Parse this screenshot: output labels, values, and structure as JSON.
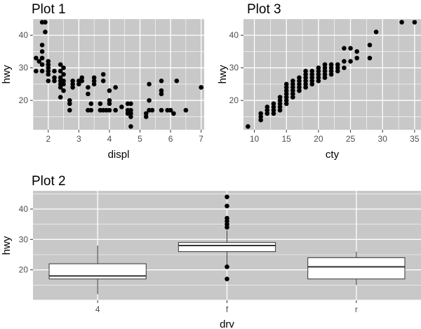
{
  "panel_bg": "#c8c8c8",
  "grid_color": "#ffffff",
  "point_color": "#000000",
  "chart_data": [
    {
      "id": "plot1",
      "type": "scatter",
      "title": "Plot 1",
      "xlabel": "displ",
      "ylabel": "hwy",
      "xlim": [
        1.5,
        7.1
      ],
      "ylim": [
        11,
        45
      ],
      "xticks": [
        2,
        3,
        4,
        5,
        6,
        7
      ],
      "yticks": [
        20,
        30,
        40
      ],
      "points": [
        [
          1.6,
          29
        ],
        [
          1.6,
          33
        ],
        [
          1.7,
          32
        ],
        [
          1.8,
          29
        ],
        [
          1.8,
          31
        ],
        [
          1.8,
          33
        ],
        [
          1.8,
          35
        ],
        [
          1.8,
          37
        ],
        [
          1.8,
          44
        ],
        [
          1.9,
          41
        ],
        [
          1.9,
          44
        ],
        [
          2.0,
          26
        ],
        [
          2.0,
          28
        ],
        [
          2.0,
          29
        ],
        [
          2.0,
          30
        ],
        [
          2.0,
          31
        ],
        [
          2.0,
          32
        ],
        [
          2.2,
          26
        ],
        [
          2.2,
          27
        ],
        [
          2.2,
          29
        ],
        [
          2.4,
          21
        ],
        [
          2.4,
          24
        ],
        [
          2.4,
          25
        ],
        [
          2.4,
          26
        ],
        [
          2.4,
          27
        ],
        [
          2.4,
          29
        ],
        [
          2.4,
          31
        ],
        [
          2.5,
          23
        ],
        [
          2.5,
          25
        ],
        [
          2.5,
          26
        ],
        [
          2.5,
          28
        ],
        [
          2.5,
          30
        ],
        [
          2.7,
          17
        ],
        [
          2.7,
          19
        ],
        [
          2.7,
          20
        ],
        [
          2.8,
          24
        ],
        [
          2.8,
          25
        ],
        [
          2.8,
          26
        ],
        [
          3.0,
          25
        ],
        [
          3.0,
          26
        ],
        [
          3.1,
          26
        ],
        [
          3.1,
          27
        ],
        [
          3.3,
          17
        ],
        [
          3.3,
          22
        ],
        [
          3.3,
          24
        ],
        [
          3.4,
          17
        ],
        [
          3.4,
          19
        ],
        [
          3.5,
          25
        ],
        [
          3.5,
          26
        ],
        [
          3.5,
          27
        ],
        [
          3.7,
          17
        ],
        [
          3.7,
          19
        ],
        [
          3.8,
          17
        ],
        [
          3.8,
          26
        ],
        [
          3.8,
          28
        ],
        [
          3.9,
          17
        ],
        [
          4.0,
          17
        ],
        [
          4.0,
          19
        ],
        [
          4.0,
          20
        ],
        [
          4.0,
          23
        ],
        [
          4.2,
          17
        ],
        [
          4.2,
          24
        ],
        [
          4.4,
          18
        ],
        [
          4.6,
          16
        ],
        [
          4.6,
          17
        ],
        [
          4.6,
          19
        ],
        [
          4.7,
          12
        ],
        [
          4.7,
          15
        ],
        [
          4.7,
          16
        ],
        [
          4.7,
          17
        ],
        [
          4.7,
          19
        ],
        [
          5.2,
          15
        ],
        [
          5.2,
          16
        ],
        [
          5.3,
          17
        ],
        [
          5.3,
          20
        ],
        [
          5.3,
          25
        ],
        [
          5.4,
          17
        ],
        [
          5.7,
          17
        ],
        [
          5.7,
          22
        ],
        [
          5.7,
          23
        ],
        [
          5.7,
          26
        ],
        [
          5.9,
          17
        ],
        [
          6.0,
          17
        ],
        [
          6.1,
          16
        ],
        [
          6.2,
          26
        ],
        [
          6.5,
          17
        ],
        [
          7.0,
          24
        ]
      ]
    },
    {
      "id": "plot3",
      "type": "scatter",
      "title": "Plot 3",
      "xlabel": "cty",
      "ylabel": "hwy",
      "xlim": [
        8.3,
        36.0
      ],
      "ylim": [
        11,
        45
      ],
      "xticks": [
        10,
        15,
        20,
        25,
        30,
        35
      ],
      "yticks": [
        20,
        30,
        40
      ],
      "points": [
        [
          9,
          12
        ],
        [
          11,
          14
        ],
        [
          11,
          15
        ],
        [
          11,
          16
        ],
        [
          12,
          16
        ],
        [
          12,
          17
        ],
        [
          12,
          18
        ],
        [
          13,
          16
        ],
        [
          13,
          17
        ],
        [
          13,
          18
        ],
        [
          13,
          19
        ],
        [
          14,
          17
        ],
        [
          14,
          18
        ],
        [
          14,
          19
        ],
        [
          14,
          20
        ],
        [
          14,
          21
        ],
        [
          15,
          19
        ],
        [
          15,
          20
        ],
        [
          15,
          21
        ],
        [
          15,
          22
        ],
        [
          15,
          23
        ],
        [
          15,
          24
        ],
        [
          15,
          25
        ],
        [
          16,
          21
        ],
        [
          16,
          22
        ],
        [
          16,
          23
        ],
        [
          16,
          24
        ],
        [
          16,
          25
        ],
        [
          16,
          26
        ],
        [
          17,
          23
        ],
        [
          17,
          24
        ],
        [
          17,
          25
        ],
        [
          17,
          26
        ],
        [
          17,
          27
        ],
        [
          18,
          24
        ],
        [
          18,
          25
        ],
        [
          18,
          26
        ],
        [
          18,
          27
        ],
        [
          18,
          28
        ],
        [
          18,
          29
        ],
        [
          19,
          25
        ],
        [
          19,
          26
        ],
        [
          19,
          27
        ],
        [
          19,
          28
        ],
        [
          19,
          29
        ],
        [
          20,
          26
        ],
        [
          20,
          27
        ],
        [
          20,
          28
        ],
        [
          20,
          29
        ],
        [
          20,
          30
        ],
        [
          21,
          27
        ],
        [
          21,
          28
        ],
        [
          21,
          29
        ],
        [
          21,
          30
        ],
        [
          21,
          31
        ],
        [
          22,
          28
        ],
        [
          22,
          29
        ],
        [
          22,
          30
        ],
        [
          22,
          31
        ],
        [
          23,
          29
        ],
        [
          23,
          30
        ],
        [
          23,
          31
        ],
        [
          24,
          30
        ],
        [
          24,
          32
        ],
        [
          24,
          36
        ],
        [
          25,
          32
        ],
        [
          25,
          36
        ],
        [
          26,
          33
        ],
        [
          26,
          35
        ],
        [
          28,
          33
        ],
        [
          28,
          37
        ],
        [
          29,
          41
        ],
        [
          33,
          44
        ],
        [
          35,
          44
        ]
      ]
    },
    {
      "id": "plot2",
      "type": "box",
      "title": "Plot 2",
      "xlabel": "drv",
      "ylabel": "hwy",
      "ylim": [
        10,
        46
      ],
      "yticks": [
        20,
        30,
        40
      ],
      "categories": [
        "4",
        "f",
        "r"
      ],
      "boxes": [
        {
          "category": "4",
          "whisker_low": 12,
          "q1": 17,
          "median": 18,
          "q3": 22,
          "whisker_high": 28,
          "outliers": []
        },
        {
          "category": "f",
          "whisker_low": 21,
          "q1": 26,
          "median": 28,
          "q3": 29,
          "whisker_high": 33,
          "outliers": [
            17,
            21,
            34,
            35,
            36,
            37,
            41,
            44
          ]
        },
        {
          "category": "r",
          "whisker_low": 15,
          "q1": 17,
          "median": 21,
          "q3": 24,
          "whisker_high": 26,
          "outliers": []
        }
      ]
    }
  ]
}
